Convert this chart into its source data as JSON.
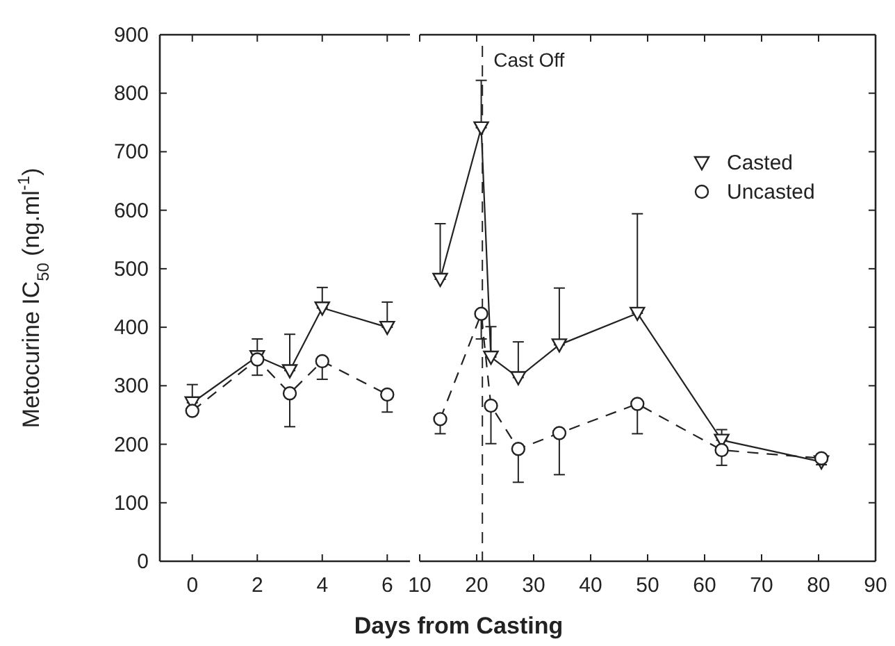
{
  "chart_data": [
    {
      "type": "line",
      "ylabel": "Metocurine IC$_{50}$ (ng.ml$^{-1}$)",
      "xlim": [
        -1,
        6.7
      ],
      "xticks": [
        0,
        2,
        4,
        6
      ],
      "ylim": [
        0,
        900
      ],
      "yticks": [
        0,
        100,
        200,
        300,
        400,
        500,
        600,
        700,
        800,
        900
      ],
      "tick_labels": "xy",
      "series": [
        {
          "color": "#222222",
          "marker": "triangle",
          "line_style": "solid",
          "x": [
            0,
            2,
            3,
            4,
            6
          ],
          "values": [
            271,
            350,
            326,
            433,
            400
          ],
          "errors": [
            [
              271,
              302
            ],
            [
              350,
              380
            ],
            [
              326,
              388
            ],
            [
              433,
              468
            ],
            [
              400,
              443
            ]
          ]
        },
        {
          "color": "#222222",
          "marker": "circle",
          "line_style": "dashed",
          "x": [
            0,
            2,
            3,
            4,
            6
          ],
          "values": [
            257,
            345,
            287,
            342,
            285
          ],
          "errors": [
            null,
            [
              318,
              345
            ],
            [
              230,
              287
            ],
            [
              311,
              342
            ],
            [
              255,
              285
            ]
          ]
        }
      ]
    },
    {
      "type": "line",
      "xlabel": "Days from Casting",
      "xlim": [
        10,
        90
      ],
      "xticks": [
        10,
        20,
        30,
        40,
        50,
        60,
        70,
        80,
        90
      ],
      "ylim": [
        0,
        900
      ],
      "yticks": [
        0,
        100,
        200,
        300,
        400,
        500,
        600,
        700,
        800,
        900
      ],
      "tick_labels": "x",
      "legend": "top right",
      "ref_lines": [
        {
          "axis": "x",
          "value": 21,
          "label": "Cast Off",
          "line_style": "dashed"
        }
      ],
      "series": [
        {
          "name": "Casted",
          "color": "#222222",
          "marker": "triangle",
          "line_style": "solid",
          "x": [
            13.6,
            20.8,
            22.5,
            27.3,
            34.5,
            48.2,
            63,
            80.5
          ],
          "values": [
            482,
            741,
            349,
            314,
            370,
            424,
            207,
            170
          ],
          "errors": [
            [
              482,
              577
            ],
            [
              741,
              822
            ],
            [
              349,
              401
            ],
            [
              314,
              375
            ],
            [
              370,
              467
            ],
            [
              424,
              594
            ],
            [
              207,
              225
            ],
            [
              170,
              180
            ]
          ]
        },
        {
          "name": "Uncasted",
          "color": "#222222",
          "marker": "circle",
          "line_style": "dashed",
          "x": [
            13.6,
            20.8,
            22.5,
            27.3,
            34.5,
            48.2,
            63,
            80.5
          ],
          "values": [
            243,
            423,
            266,
            192,
            219,
            269,
            190,
            176
          ],
          "errors": [
            [
              218,
              243
            ],
            [
              380,
              423
            ],
            [
              201,
              266
            ],
            [
              135,
              192
            ],
            [
              148,
              219
            ],
            [
              218,
              269
            ],
            [
              164,
              190
            ],
            [
              165,
              176
            ]
          ]
        }
      ]
    }
  ]
}
